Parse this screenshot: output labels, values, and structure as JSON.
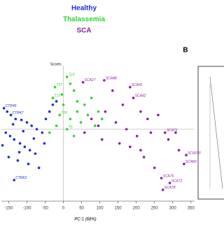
{
  "chart_data": {
    "type": "scatter",
    "title_lines": [],
    "panel_label": "B",
    "plot_label": "Scores",
    "x_label": "PC-1 (68%)",
    "xlim": [
      -170,
      360
    ],
    "ylim": [
      -150,
      130
    ],
    "xticks": [
      -150,
      -100,
      -50,
      0,
      50,
      100,
      150,
      200,
      250,
      300,
      350
    ],
    "reference_lines": true,
    "series": [
      {
        "name": "Healthy",
        "color": "#1a2fd8",
        "x": [
          -163,
          -154,
          -144,
          -131,
          -115,
          -100,
          -87,
          -73,
          -58,
          -158,
          -146,
          -135,
          -119,
          -106,
          -92,
          -77,
          -150,
          -125,
          -96,
          -67,
          -48,
          -38,
          -29,
          -19,
          -138,
          -110,
          -81,
          -167,
          -52,
          -121,
          -135
        ],
        "values": [
          43,
          36,
          29,
          21,
          19,
          14,
          7,
          0,
          -7,
          -7,
          -14,
          -21,
          -29,
          -36,
          -43,
          -50,
          -57,
          -64,
          -71,
          -79,
          21,
          36,
          50,
          57,
          10,
          -4,
          -19,
          -33,
          -29,
          -47,
          -104
        ],
        "labels": [
          "CTR46",
          null,
          "CTR47",
          null,
          null,
          null,
          null,
          null,
          null,
          null,
          null,
          null,
          null,
          null,
          null,
          null,
          null,
          null,
          null,
          null,
          null,
          null,
          null,
          null,
          null,
          null,
          null,
          null,
          null,
          null,
          "CTR63"
        ]
      },
      {
        "name": "Thalassemia",
        "color": "#2fd42f",
        "x": [
          10,
          19,
          29,
          -4,
          -29,
          38,
          58,
          77,
          96,
          -10,
          19,
          48,
          67,
          10,
          29,
          -38,
          -19,
          87,
          106,
          38,
          0,
          -23
        ],
        "values": [
          107,
          93,
          79,
          71,
          64,
          57,
          50,
          64,
          36,
          29,
          21,
          14,
          29,
          0,
          -14,
          -7,
          7,
          7,
          21,
          36,
          50,
          86
        ],
        "labels": [
          "T23",
          null,
          null,
          null,
          "T13",
          null,
          null,
          null,
          null,
          "T20",
          null,
          null,
          null,
          "T5",
          null,
          null,
          null,
          null,
          null,
          null,
          null,
          "T27"
        ]
      },
      {
        "name": "SCA",
        "color": "#8b1fa3",
        "x": [
          54,
          112,
          183,
          192,
          135,
          163,
          212,
          231,
          260,
          115,
          144,
          173,
          202,
          240,
          288,
          308,
          279,
          337,
          331,
          292,
          273,
          269,
          221,
          250,
          183,
          154,
          96,
          77,
          212,
          317,
          58,
          106
        ],
        "values": [
          96,
          100,
          86,
          64,
          79,
          50,
          36,
          21,
          29,
          36,
          14,
          0,
          -14,
          -7,
          -21,
          -7,
          -7,
          -53,
          -71,
          -110,
          -124,
          -100,
          -57,
          -79,
          -36,
          -29,
          7,
          21,
          -43,
          -43,
          -7,
          -21
        ],
        "labels": [
          "SCA27",
          "SCA88",
          "SCA41",
          "SCA42",
          null,
          null,
          null,
          null,
          null,
          null,
          null,
          null,
          null,
          null,
          null,
          null,
          "SCA71",
          "SCA100",
          "SCA82",
          "SCA72",
          "SCA78",
          "SCA76",
          null,
          null,
          null,
          null,
          null,
          null,
          null,
          null,
          null,
          null
        ]
      }
    ]
  }
}
